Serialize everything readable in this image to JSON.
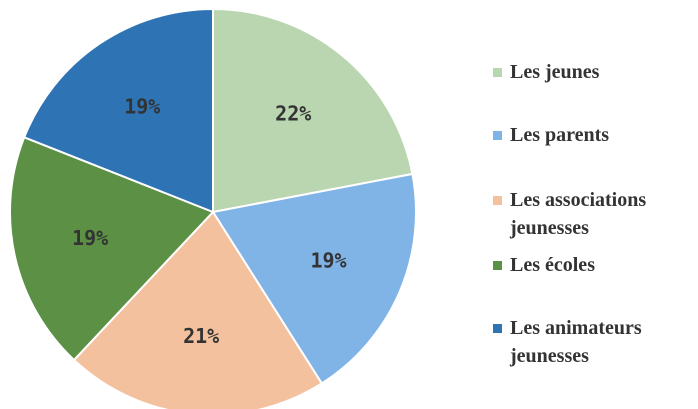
{
  "chart_data": {
    "type": "pie",
    "categories": [
      "Les jeunes",
      "Les parents",
      "Les associations jeunesses",
      "Les écoles",
      "Les animateurs jeunesses"
    ],
    "values": [
      22,
      19,
      21,
      19,
      19
    ],
    "value_labels": [
      "22%",
      "19%",
      "21%",
      "19%",
      "19%"
    ],
    "colors": [
      "#b9d6b0",
      "#80b3e6",
      "#f3c19e",
      "#5b9045",
      "#2e74b5"
    ],
    "legend": "right"
  }
}
